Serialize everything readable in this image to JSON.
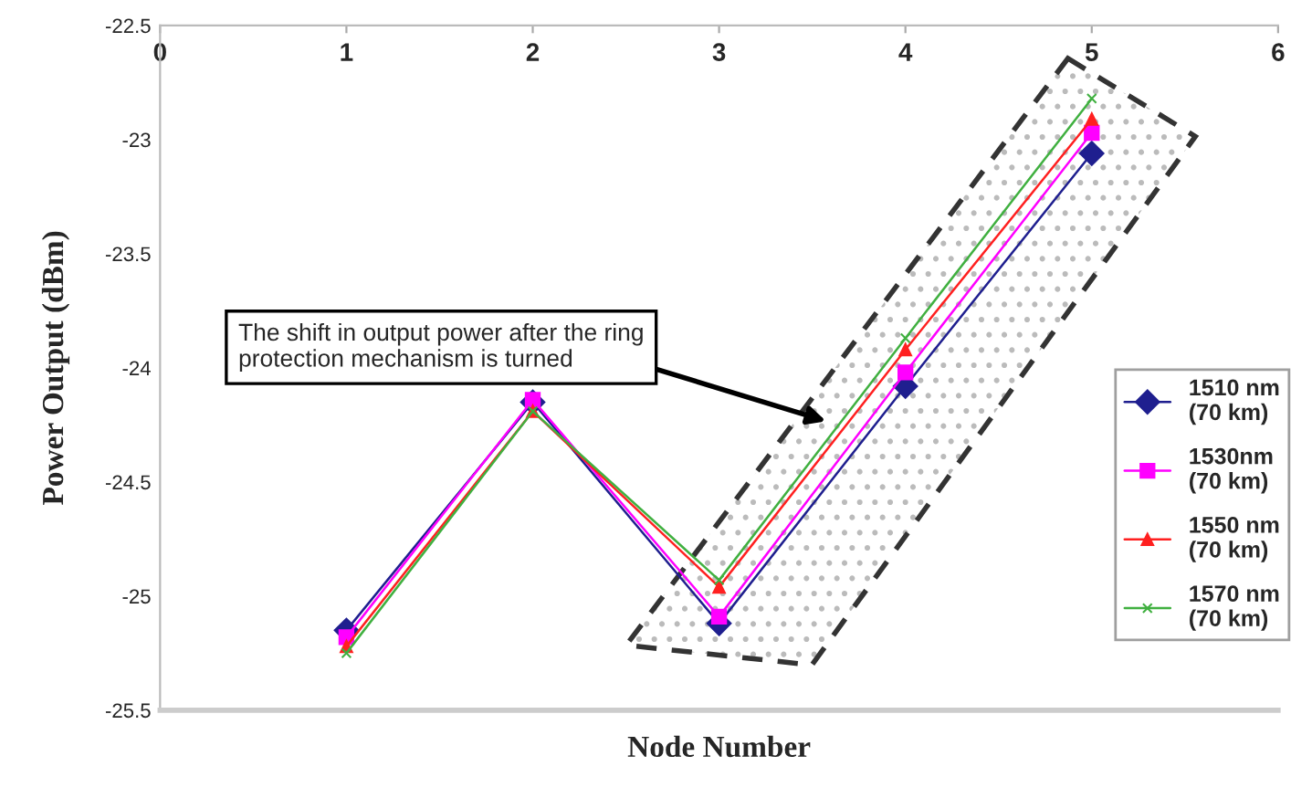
{
  "chart_data": {
    "type": "line",
    "xlabel": "Node Number",
    "ylabel": "Power Output (dBm)",
    "x": [
      1,
      2,
      3,
      4,
      5
    ],
    "series": [
      {
        "name": "1510 nm\n(70 km)",
        "color": "#1f1f8f",
        "marker": "diamond",
        "values": [
          -25.15,
          -24.15,
          -25.12,
          -24.08,
          -23.06
        ]
      },
      {
        "name": "1530nm\n(70 km)",
        "color": "#ff00ff",
        "marker": "square",
        "values": [
          -25.18,
          -24.14,
          -25.09,
          -24.02,
          -22.97
        ]
      },
      {
        "name": "1550 nm\n(70 km)",
        "color": "#ff2020",
        "marker": "triangle",
        "values": [
          -25.22,
          -24.19,
          -24.96,
          -23.92,
          -22.91
        ]
      },
      {
        "name": "1570 nm\n(70 km)",
        "color": "#40b040",
        "marker": "cross",
        "values": [
          -25.25,
          -24.19,
          -24.93,
          -23.87,
          -22.82
        ]
      }
    ],
    "xlim": [
      0,
      6
    ],
    "xticks": [
      0,
      1,
      2,
      3,
      4,
      5,
      6
    ],
    "ylim": [
      -25.5,
      -22.5
    ],
    "yticks": [
      -25.5,
      -25,
      -24.5,
      -24,
      -23.5,
      -23,
      -22.5
    ],
    "annotations": [
      "The shift in output power after the ring protection mechanism is turned"
    ],
    "grid": false,
    "legend": "right",
    "line_style": "solid"
  }
}
